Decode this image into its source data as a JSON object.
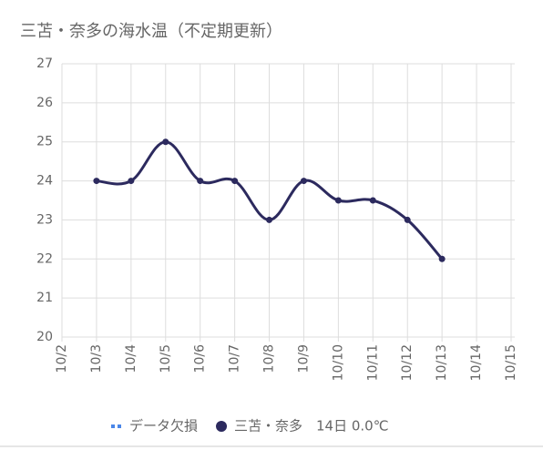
{
  "chart_data": {
    "type": "line",
    "title": "三苫・奈多の海水温（不定期更新）",
    "categories": [
      "10/2",
      "10/3",
      "10/4",
      "10/5",
      "10/6",
      "10/7",
      "10/8",
      "10/9",
      "10/10",
      "10/11",
      "10/12",
      "10/13",
      "10/14",
      "10/15"
    ],
    "series": [
      {
        "name": "データ欠損",
        "color": "#4a86e8",
        "values": [
          null,
          null,
          null,
          null,
          null,
          null,
          null,
          null,
          null,
          null,
          null,
          null,
          null,
          null
        ]
      },
      {
        "name": "三苫・奈多　14日 0.0℃",
        "color": "#2c2a5e",
        "values": [
          null,
          24,
          24,
          25,
          24,
          24,
          23,
          24,
          23.5,
          23.5,
          23,
          22,
          null,
          null
        ]
      }
    ],
    "ylim": [
      20,
      27
    ],
    "yticks": [
      20,
      21,
      22,
      23,
      24,
      25,
      26,
      27
    ],
    "grid": true,
    "legend": "bottom"
  }
}
